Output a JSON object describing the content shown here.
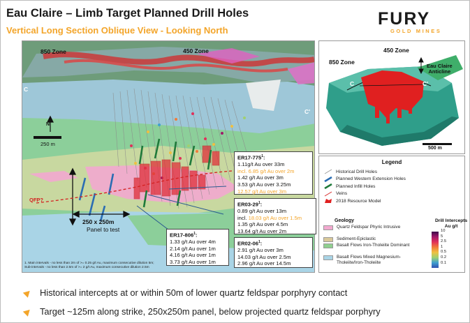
{
  "header": {
    "title": "Eau Claire – Limb Target Planned Drill Holes",
    "subtitle": "Vertical Long Section Oblique View - Looking North"
  },
  "logo": {
    "main": "FURY",
    "sub": "GOLD MINES",
    "brand_color": "#f3a52a"
  },
  "main_figure": {
    "zone_850": "850 Zone",
    "zone_450": "450 Zone",
    "section_c": "C",
    "section_c_prime": "C'",
    "scale_label": "250 m",
    "qfp_label": "QFP?",
    "panel_size": "250 x 250m",
    "panel_text": "Panel to test",
    "footnote_line1": "1. Main intervals - no less than 2m of >= 0.25 g/t Au, maximum consecutive dilution 5m;",
    "footnote_line2": "Sub-intervals - no less than 2.5m of >= 2 g/t Au, maximum consecutive dilution 2.5m"
  },
  "intercepts": {
    "er17_775": {
      "hole": "ER17-775",
      "sup": "1",
      "lines": [
        "1.11g/t Au over 33m",
        "incl. 6.85 g/t Au over 2m",
        "1.42 g/t Au over 3m",
        "3.53 g/t Au over 3.25m",
        "12.57 g/t Au over 3m"
      ],
      "highlight_rows": [
        1,
        4
      ]
    },
    "er03_29": {
      "hole": "ER03-29",
      "sup": "1",
      "line1": "0.89 g/t Au over 13m",
      "line2_prefix": "incl. ",
      "line2_highlight": "18.03 g/t Au over 1.5m",
      "line3": "1.35 g/t Au over 4.5m",
      "line4": "13.64 g/t Au over 2m"
    },
    "er02_06": {
      "hole": "ER02-06",
      "sup": "1",
      "lines": [
        "2.91 g/t Au over 3m",
        "14.03 g/t Au over 2.5m",
        "2.96 g/t Au over 14.5m"
      ]
    },
    "er17_806": {
      "hole": "ER17-806",
      "sup": "1",
      "lines": [
        "1.33 g/t Au over 4m",
        "2.14 g/t Au over 1m",
        "4.16 g/t Au over 1m",
        "3.73 g/t Au over 1m"
      ]
    }
  },
  "inset": {
    "zone_450": "450 Zone",
    "zone_850": "850 Zone",
    "anticline_line1": "Eau Claire",
    "anticline_line2": "Anticline",
    "c": "C",
    "c_prime": "C'",
    "scale": "500 m"
  },
  "legend": {
    "title": "Legend",
    "items": [
      {
        "label": "Historical Drill Holes",
        "color": "#9a9a9a",
        "style": "thin"
      },
      {
        "label": "Planned Western Extension Holes",
        "color": "#2a6db3",
        "style": "thick"
      },
      {
        "label": "Planned Infill Holes",
        "color": "#1f7a3a",
        "style": "thick"
      },
      {
        "label": "Veins",
        "color": "#d42020",
        "style": "thin"
      },
      {
        "label": "2018 Resource Model",
        "color": "#e02020",
        "style": "blob"
      }
    ],
    "geology_title": "Geology",
    "geology": [
      {
        "label": "Quartz Feldspar Phyric Intrusive",
        "color": "#f2a9cf"
      },
      {
        "label": "Sediment-Epiclastic",
        "color": "#d9c99a"
      },
      {
        "label": "Basalt Flows Iron-Tholeiite Dominant",
        "color": "#8fcf8f"
      },
      {
        "label": "Basalt Flows Mixed Magnesium-Tholeiite/Iron-Tholeiite",
        "color": "#a9d4e6"
      }
    ],
    "intercepts_title_line1": "Drill Intercepts",
    "intercepts_title_line2": "Au g/t",
    "scale_ticks": [
      "10",
      "5",
      "2.5",
      "1",
      "0.5",
      "0.2",
      "0.1"
    ],
    "scale_colors": [
      "#3a0a4a",
      "#a0186a",
      "#e0305a",
      "#f07a3a",
      "#f0c040",
      "#a0d070",
      "#40a0d0",
      "#3050b0"
    ]
  },
  "bullets": [
    "Historical intercepts at or within 50m of lower quartz feldspar porphyry contact",
    "Target ~125m along strike, 250x250m panel, below projected quartz feldspar porphyry"
  ]
}
